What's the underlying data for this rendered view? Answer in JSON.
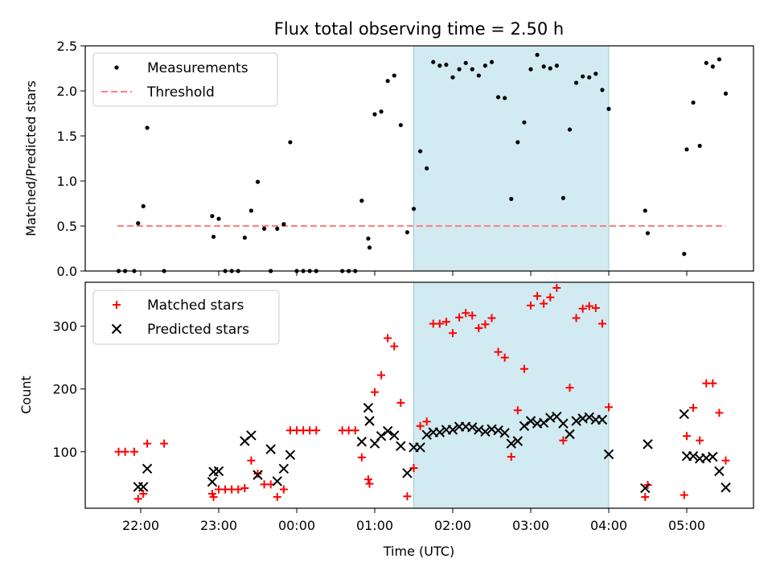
{
  "chart_data": [
    {
      "type": "scatter",
      "title": "Flux total observing time = 2.50 h",
      "xlabel": "",
      "ylabel": "Matched/Predicted stars",
      "ylim": [
        0,
        2.5
      ],
      "yticks": [
        "0.0",
        "0.5",
        "1.0",
        "1.5",
        "2.0",
        "2.5"
      ],
      "xticks": [
        "22:00",
        "23:00",
        "00:00",
        "01:00",
        "02:00",
        "03:00",
        "04:00",
        "05:00"
      ],
      "shaded_window": [
        "01:30",
        "04:00"
      ],
      "shade_color": "#add8e6",
      "legend_position": "top-left",
      "legend": [
        "Measurements",
        "Threshold"
      ],
      "threshold": {
        "name": "Threshold",
        "value": 0.5,
        "x_range": [
          "21:42",
          "05:30"
        ],
        "color": "#ff7f7f"
      },
      "series": [
        {
          "name": "Measurements",
          "color": "#000000",
          "points": [
            [
              "21:43",
              0
            ],
            [
              "21:48",
              0
            ],
            [
              "21:55",
              0
            ],
            [
              "21:58",
              0.53
            ],
            [
              "22:02",
              0.72
            ],
            [
              "22:05",
              1.59
            ],
            [
              "22:18",
              0
            ],
            [
              "22:55",
              0.61
            ],
            [
              "22:56",
              0.38
            ],
            [
              "23:00",
              0.58
            ],
            [
              "23:05",
              0
            ],
            [
              "23:10",
              0
            ],
            [
              "23:15",
              0
            ],
            [
              "23:20",
              0.37
            ],
            [
              "23:25",
              0.67
            ],
            [
              "23:30",
              0.99
            ],
            [
              "23:35",
              0.47
            ],
            [
              "23:40",
              0
            ],
            [
              "23:45",
              0.47
            ],
            [
              "23:50",
              0.52
            ],
            [
              "23:55",
              1.43
            ],
            [
              "00:00",
              0
            ],
            [
              "00:05",
              0
            ],
            [
              "00:10",
              0
            ],
            [
              "00:15",
              0
            ],
            [
              "00:35",
              0
            ],
            [
              "00:40",
              0
            ],
            [
              "00:45",
              0
            ],
            [
              "00:50",
              0.78
            ],
            [
              "00:55",
              0.36
            ],
            [
              "00:56",
              0.26
            ],
            [
              "01:00",
              1.74
            ],
            [
              "01:05",
              1.77
            ],
            [
              "01:10",
              2.11
            ],
            [
              "01:15",
              2.17
            ],
            [
              "01:20",
              1.62
            ],
            [
              "01:25",
              0.43
            ],
            [
              "01:30",
              0.69
            ],
            [
              "01:35",
              1.33
            ],
            [
              "01:40",
              1.14
            ],
            [
              "01:45",
              2.32
            ],
            [
              "01:50",
              2.28
            ],
            [
              "01:55",
              2.29
            ],
            [
              "02:00",
              2.15
            ],
            [
              "02:05",
              2.24
            ],
            [
              "02:10",
              2.31
            ],
            [
              "02:15",
              2.24
            ],
            [
              "02:20",
              2.17
            ],
            [
              "02:25",
              2.28
            ],
            [
              "02:30",
              2.32
            ],
            [
              "02:35",
              1.93
            ],
            [
              "02:40",
              1.92
            ],
            [
              "02:45",
              0.8
            ],
            [
              "02:50",
              1.43
            ],
            [
              "02:55",
              1.65
            ],
            [
              "03:00",
              2.24
            ],
            [
              "03:05",
              2.4
            ],
            [
              "03:10",
              2.27
            ],
            [
              "03:15",
              2.25
            ],
            [
              "03:20",
              2.28
            ],
            [
              "03:25",
              0.81
            ],
            [
              "03:30",
              1.57
            ],
            [
              "03:35",
              2.09
            ],
            [
              "03:40",
              2.16
            ],
            [
              "03:45",
              2.15
            ],
            [
              "03:50",
              2.19
            ],
            [
              "03:55",
              2.01
            ],
            [
              "04:00",
              1.8
            ],
            [
              "04:28",
              0.67
            ],
            [
              "04:30",
              0.42
            ],
            [
              "04:58",
              0.19
            ],
            [
              "05:00",
              1.35
            ],
            [
              "05:05",
              1.87
            ],
            [
              "05:10",
              1.39
            ],
            [
              "05:15",
              2.31
            ],
            [
              "05:20",
              2.27
            ],
            [
              "05:25",
              2.35
            ],
            [
              "05:30",
              1.97
            ]
          ]
        }
      ]
    },
    {
      "type": "scatter",
      "title": "",
      "xlabel": "Time (UTC)",
      "ylabel": "Count",
      "ylim": [
        10,
        370
      ],
      "yticks": [
        "100",
        "200",
        "300"
      ],
      "xticks": [
        "22:00",
        "23:00",
        "00:00",
        "01:00",
        "02:00",
        "03:00",
        "04:00",
        "05:00"
      ],
      "shaded_window": [
        "01:30",
        "04:00"
      ],
      "shade_color": "#add8e6",
      "legend_position": "top-left",
      "legend": [
        "Matched stars",
        "Predicted stars"
      ],
      "series": [
        {
          "name": "Matched stars",
          "color": "#ff0000",
          "marker": "+",
          "points": [
            [
              "21:43",
              100
            ],
            [
              "21:48",
              100
            ],
            [
              "21:55",
              100
            ],
            [
              "21:58",
              25
            ],
            [
              "22:02",
              33
            ],
            [
              "22:05",
              113
            ],
            [
              "22:18",
              113
            ],
            [
              "22:55",
              33
            ],
            [
              "22:56",
              28
            ],
            [
              "23:00",
              40
            ],
            [
              "23:05",
              40
            ],
            [
              "23:10",
              40
            ],
            [
              "23:15",
              40
            ],
            [
              "23:20",
              42
            ],
            [
              "23:25",
              86
            ],
            [
              "23:30",
              65
            ],
            [
              "23:35",
              48
            ],
            [
              "23:40",
              48
            ],
            [
              "23:45",
              28
            ],
            [
              "23:50",
              40
            ],
            [
              "23:55",
              134
            ],
            [
              "00:00",
              134
            ],
            [
              "00:05",
              134
            ],
            [
              "00:10",
              134
            ],
            [
              "00:15",
              134
            ],
            [
              "00:35",
              134
            ],
            [
              "00:40",
              134
            ],
            [
              "00:45",
              134
            ],
            [
              "00:50",
              91
            ],
            [
              "00:55",
              56
            ],
            [
              "00:56",
              49
            ],
            [
              "01:00",
              195
            ],
            [
              "01:05",
              222
            ],
            [
              "01:10",
              281
            ],
            [
              "01:15",
              268
            ],
            [
              "01:20",
              178
            ],
            [
              "01:25",
              29
            ],
            [
              "01:30",
              74
            ],
            [
              "01:35",
              141
            ],
            [
              "01:40",
              148
            ],
            [
              "01:45",
              304
            ],
            [
              "01:50",
              304
            ],
            [
              "01:55",
              307
            ],
            [
              "02:00",
              289
            ],
            [
              "02:05",
              314
            ],
            [
              "02:10",
              321
            ],
            [
              "02:15",
              317
            ],
            [
              "02:20",
              297
            ],
            [
              "02:25",
              303
            ],
            [
              "02:30",
              313
            ],
            [
              "02:35",
              259
            ],
            [
              "02:40",
              250
            ],
            [
              "02:45",
              92
            ],
            [
              "02:50",
              166
            ],
            [
              "02:55",
              232
            ],
            [
              "03:00",
              333
            ],
            [
              "03:05",
              348
            ],
            [
              "03:10",
              336
            ],
            [
              "03:15",
              346
            ],
            [
              "03:20",
              361
            ],
            [
              "03:25",
              118
            ],
            [
              "03:30",
              202
            ],
            [
              "03:35",
              313
            ],
            [
              "03:40",
              328
            ],
            [
              "03:45",
              332
            ],
            [
              "03:50",
              329
            ],
            [
              "03:55",
              304
            ],
            [
              "04:00",
              171
            ],
            [
              "04:28",
              28
            ],
            [
              "04:30",
              47
            ],
            [
              "04:58",
              31
            ],
            [
              "05:00",
              125
            ],
            [
              "05:05",
              170
            ],
            [
              "05:10",
              118
            ],
            [
              "05:15",
              209
            ],
            [
              "05:20",
              209
            ],
            [
              "05:25",
              162
            ],
            [
              "05:30",
              86
            ]
          ]
        },
        {
          "name": "Predicted stars",
          "color": "#000000",
          "marker": "x",
          "points": [
            [
              "21:58",
              44
            ],
            [
              "22:02",
              44
            ],
            [
              "22:05",
              73
            ],
            [
              "22:55",
              52
            ],
            [
              "22:56",
              68
            ],
            [
              "23:00",
              69
            ],
            [
              "23:20",
              117
            ],
            [
              "23:25",
              126
            ],
            [
              "23:30",
              63
            ],
            [
              "23:40",
              104
            ],
            [
              "23:45",
              53
            ],
            [
              "23:50",
              73
            ],
            [
              "23:55",
              95
            ],
            [
              "00:50",
              116
            ],
            [
              "00:55",
              170
            ],
            [
              "00:56",
              149
            ],
            [
              "01:00",
              113
            ],
            [
              "01:05",
              125
            ],
            [
              "01:10",
              133
            ],
            [
              "01:15",
              126
            ],
            [
              "01:20",
              109
            ],
            [
              "01:25",
              66
            ],
            [
              "01:30",
              107
            ],
            [
              "01:35",
              107
            ],
            [
              "01:40",
              127
            ],
            [
              "01:45",
              131
            ],
            [
              "01:50",
              131
            ],
            [
              "01:55",
              135
            ],
            [
              "02:00",
              135
            ],
            [
              "02:05",
              140
            ],
            [
              "02:10",
              140
            ],
            [
              "02:15",
              139
            ],
            [
              "02:20",
              135
            ],
            [
              "02:25",
              132
            ],
            [
              "02:30",
              136
            ],
            [
              "02:35",
              134
            ],
            [
              "02:40",
              130
            ],
            [
              "02:45",
              113
            ],
            [
              "02:50",
              117
            ],
            [
              "02:55",
              141
            ],
            [
              "03:00",
              149
            ],
            [
              "03:05",
              145
            ],
            [
              "03:10",
              146
            ],
            [
              "03:15",
              154
            ],
            [
              "03:20",
              156
            ],
            [
              "03:25",
              145
            ],
            [
              "03:30",
              128
            ],
            [
              "03:35",
              149
            ],
            [
              "03:40",
              153
            ],
            [
              "03:45",
              155
            ],
            [
              "03:50",
              151
            ],
            [
              "03:55",
              151
            ],
            [
              "04:00",
              96
            ],
            [
              "04:28",
              42
            ],
            [
              "04:30",
              112
            ],
            [
              "04:58",
              160
            ],
            [
              "05:00",
              93
            ],
            [
              "05:05",
              93
            ],
            [
              "05:10",
              89
            ],
            [
              "05:15",
              90
            ],
            [
              "05:20",
              92
            ],
            [
              "05:25",
              69
            ],
            [
              "05:30",
              43
            ]
          ]
        }
      ]
    }
  ]
}
